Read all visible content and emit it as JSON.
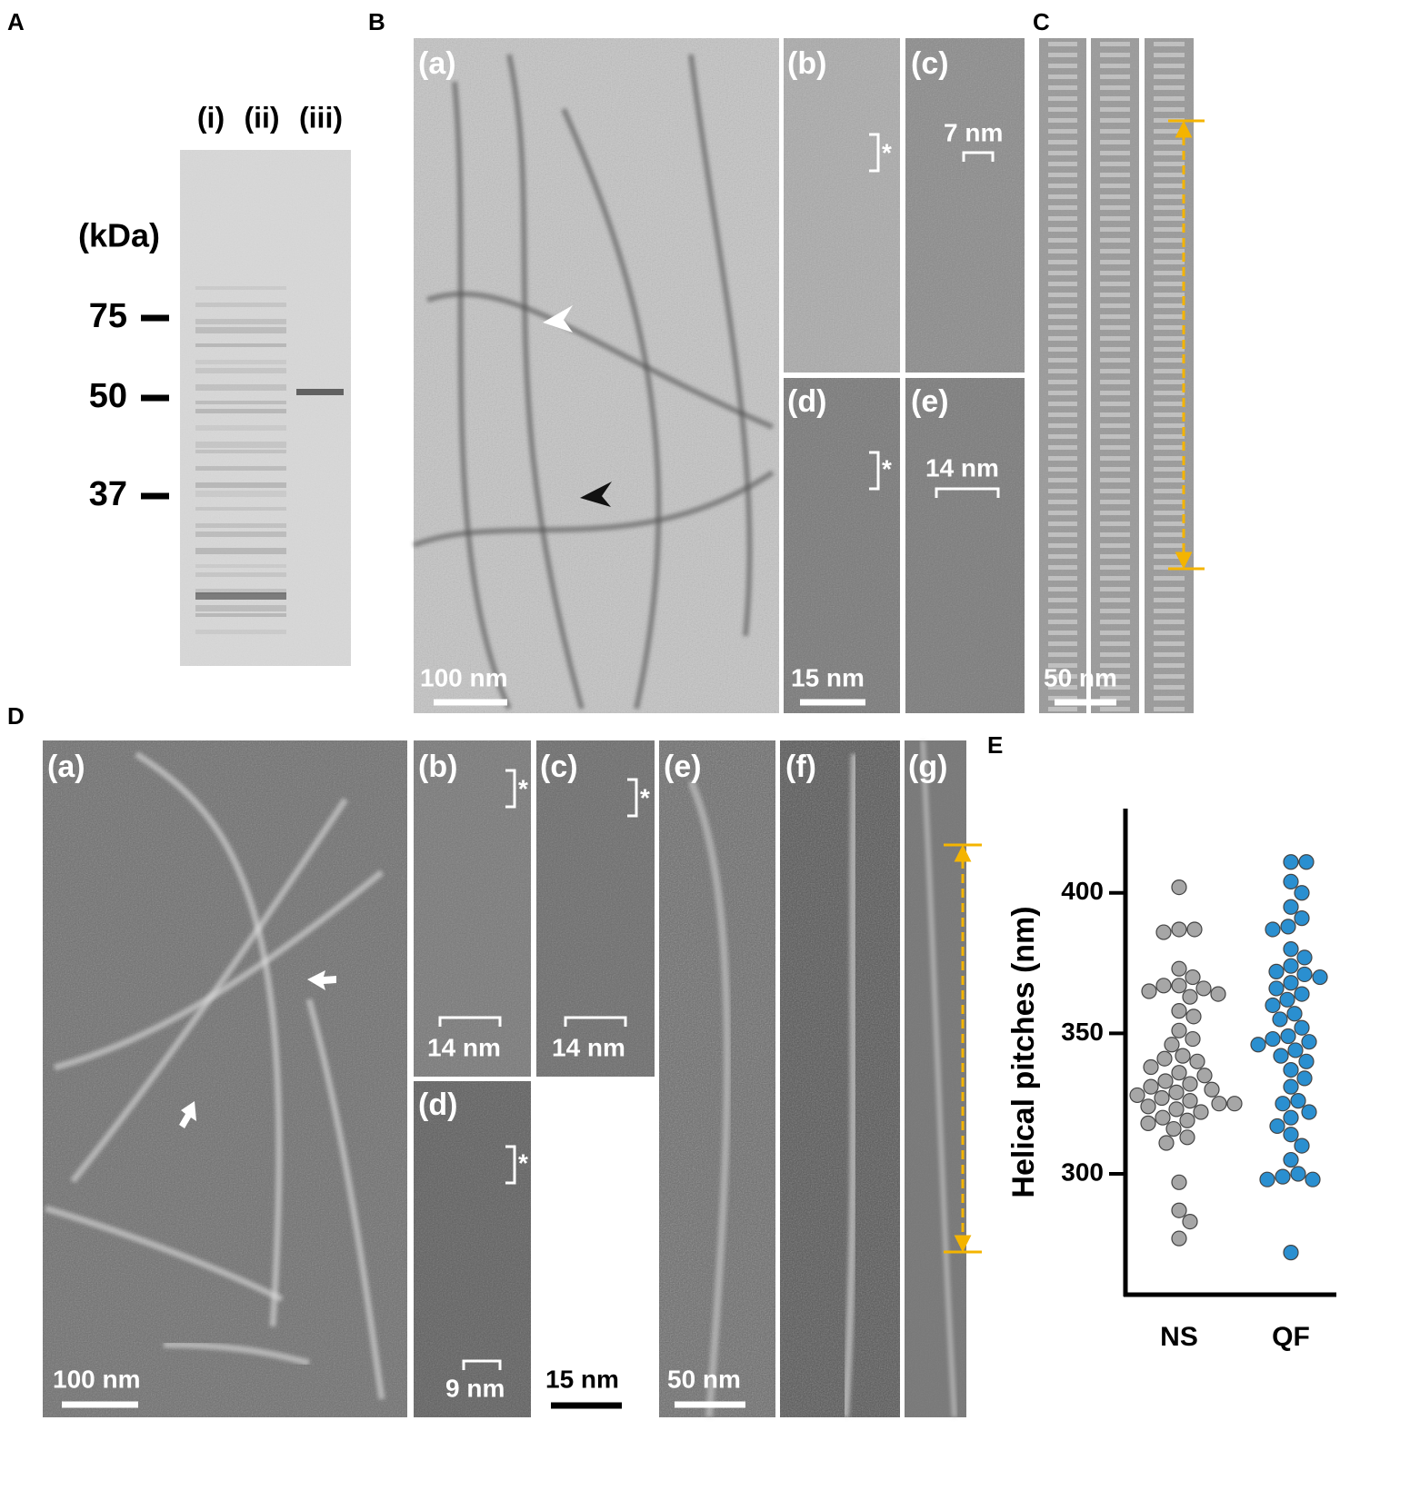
{
  "panels": {
    "A": {
      "letter": "A",
      "lanes": [
        "(i)",
        "(ii)",
        "(iii)"
      ],
      "unit": "(kDa)",
      "markers": [
        75,
        50,
        37
      ]
    },
    "B": {
      "letter": "B",
      "subpanels": [
        {
          "label": "(a)",
          "scale": "100 nm"
        },
        {
          "label": "(b)",
          "mark": "*"
        },
        {
          "label": "(c)",
          "measure": "7 nm"
        },
        {
          "label": "(d)",
          "mark": "*",
          "scale": "15 nm"
        },
        {
          "label": "(e)",
          "measure": "14 nm"
        }
      ]
    },
    "C": {
      "letter": "C",
      "scale": "50 nm"
    },
    "D": {
      "letter": "D",
      "scale": "15 nm",
      "subpanels": [
        {
          "label": "(a)",
          "scale": "100 nm"
        },
        {
          "label": "(b)",
          "mark": "*",
          "measure": "14 nm"
        },
        {
          "label": "(c)",
          "mark": "*",
          "measure": "14 nm"
        },
        {
          "label": "(d)",
          "mark": "*",
          "measure": "9 nm"
        },
        {
          "label": "(e)",
          "scale": "50 nm"
        },
        {
          "label": "(f)"
        },
        {
          "label": "(g)"
        }
      ]
    },
    "E": {
      "letter": "E"
    }
  },
  "chart_data": {
    "type": "strip",
    "y_label": "Helical pitches (nm)",
    "categories": [
      "NS",
      "QF"
    ],
    "colors": [
      "#a6a6a6",
      "#2a8fd0"
    ],
    "values": [
      [
        402,
        387,
        387,
        386,
        373,
        370,
        367,
        367,
        366,
        365,
        364,
        363,
        358,
        356,
        351,
        348,
        346,
        342,
        341,
        340,
        338,
        336,
        335,
        333,
        332,
        331,
        330,
        329,
        328,
        327,
        326,
        325,
        325,
        324,
        323,
        322,
        320,
        319,
        318,
        316,
        313,
        311,
        297,
        287,
        283,
        277
      ],
      [
        411,
        411,
        404,
        400,
        395,
        391,
        388,
        387,
        380,
        377,
        374,
        372,
        371,
        370,
        368,
        366,
        364,
        362,
        360,
        357,
        355,
        352,
        349,
        348,
        347,
        346,
        344,
        342,
        340,
        337,
        334,
        331,
        326,
        325,
        322,
        320,
        317,
        314,
        310,
        305,
        300,
        299,
        298,
        298,
        272
      ]
    ],
    "ylim": [
      257,
      430
    ],
    "yticks": [
      300,
      350,
      400
    ]
  }
}
